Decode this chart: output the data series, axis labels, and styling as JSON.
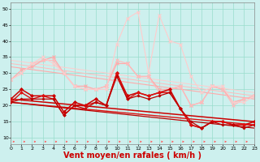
{
  "x": [
    0,
    1,
    2,
    3,
    4,
    5,
    6,
    7,
    8,
    9,
    10,
    11,
    12,
    13,
    14,
    15,
    16,
    17,
    18,
    19,
    20,
    21,
    22,
    23
  ],
  "series_pink_lines": [
    {
      "y": [
        28,
        31,
        32,
        34,
        35,
        30,
        26,
        26,
        25,
        26,
        33,
        33,
        29,
        29,
        25,
        25,
        26,
        20,
        21,
        26,
        25,
        21,
        22,
        23
      ],
      "color": "#ffaaaa",
      "lw": 0.9,
      "marker": "x",
      "ms": 2.5,
      "mew": 0.8
    },
    {
      "y": [
        28,
        30,
        33,
        34,
        34,
        30,
        26,
        25,
        25,
        26,
        34,
        33,
        29,
        29,
        24,
        25,
        26,
        20,
        21,
        26,
        25,
        20,
        22,
        23
      ],
      "color": "#ffbbbb",
      "lw": 0.8,
      "marker": "x",
      "ms": 2.5,
      "mew": 0.8
    },
    {
      "y": [
        28,
        30,
        33,
        35,
        33,
        30,
        26,
        25,
        25,
        25,
        39,
        47,
        49,
        30,
        48,
        40,
        39,
        29,
        24,
        26,
        26,
        21,
        21,
        23
      ],
      "color": "#ffcccc",
      "lw": 0.8,
      "marker": "x",
      "ms": 2.5,
      "mew": 0.8
    }
  ],
  "series_pink_trend": [
    {
      "y0": 32,
      "y1": 22,
      "color": "#ffaaaa",
      "lw": 0.8
    },
    {
      "y0": 33,
      "y1": 23,
      "color": "#ffbbbb",
      "lw": 0.7
    },
    {
      "y0": 34,
      "y1": 24,
      "color": "#ffcccc",
      "lw": 0.7
    }
  ],
  "series_red_lines": [
    {
      "y": [
        22,
        25,
        23,
        23,
        23,
        18,
        21,
        20,
        22,
        20,
        30,
        23,
        24,
        23,
        24,
        25,
        19,
        14,
        13,
        15,
        15,
        14,
        14,
        15
      ],
      "color": "#cc0000",
      "lw": 1.1,
      "marker": "D",
      "ms": 2.0,
      "mew": 0.6
    },
    {
      "y": [
        21,
        24,
        22,
        23,
        22,
        17,
        20,
        20,
        21,
        20,
        30,
        22,
        24,
        23,
        24,
        24,
        19,
        14,
        13,
        15,
        15,
        14,
        14,
        14
      ],
      "color": "#dd1111",
      "lw": 1.0,
      "marker": "D",
      "ms": 1.8,
      "mew": 0.6
    },
    {
      "y": [
        21,
        22,
        22,
        22,
        22,
        17,
        20,
        19,
        21,
        20,
        29,
        22,
        23,
        22,
        23,
        24,
        19,
        15,
        13,
        15,
        14,
        14,
        13,
        14
      ],
      "color": "#bb0000",
      "lw": 0.9,
      "marker": "D",
      "ms": 1.6,
      "mew": 0.5
    }
  ],
  "series_red_trend": [
    {
      "y0": 22,
      "y1": 15,
      "color": "#cc0000",
      "lw": 1.1
    },
    {
      "y0": 21,
      "y1": 14,
      "color": "#dd1111",
      "lw": 1.0
    },
    {
      "y0": 21,
      "y1": 13,
      "color": "#bb0000",
      "lw": 0.9
    }
  ],
  "xlabel": "Vent moyen/en rafales ( km/h )",
  "xlim": [
    0,
    23
  ],
  "ylim": [
    8,
    52
  ],
  "yticks": [
    10,
    15,
    20,
    25,
    30,
    35,
    40,
    45,
    50
  ],
  "xticks": [
    0,
    1,
    2,
    3,
    4,
    5,
    6,
    7,
    8,
    9,
    10,
    11,
    12,
    13,
    14,
    15,
    16,
    17,
    18,
    19,
    20,
    21,
    22,
    23
  ],
  "bg_color": "#cdf0ee",
  "grid_color": "#99ddcc",
  "arrow_color": "#ff5555",
  "xlabel_color": "#cc0000",
  "xlabel_fontsize": 7
}
